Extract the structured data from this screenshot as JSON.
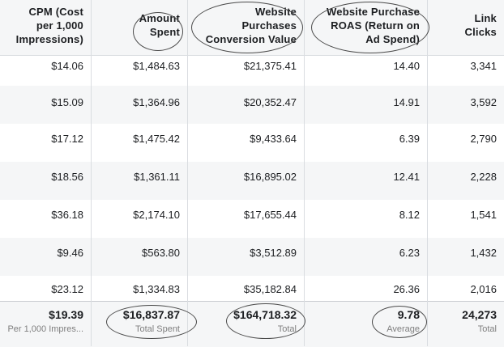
{
  "headers": [
    "CPM (Cost\nper 1,000\nImpressions)",
    "Amount\nSpent",
    "Website\nPurchases\nConversion Value",
    "Website Purchase\nROAS (Return on\nAd Spend)",
    "Link\nClicks"
  ],
  "rows": [
    [
      "$14.06",
      "$1,484.63",
      "$21,375.41",
      "14.40",
      "3,341"
    ],
    [
      "$15.09",
      "$1,364.96",
      "$20,352.47",
      "14.91",
      "3,592"
    ],
    [
      "$17.12",
      "$1,475.42",
      "$9,433.64",
      "6.39",
      "2,790"
    ],
    [
      "$18.56",
      "$1,361.11",
      "$16,895.02",
      "12.41",
      "2,228"
    ],
    [
      "$36.18",
      "$2,174.10",
      "$17,655.44",
      "8.12",
      "1,541"
    ],
    [
      "$9.46",
      "$563.80",
      "$3,512.89",
      "6.23",
      "1,432"
    ],
    [
      "$23.12",
      "$1,334.83",
      "$35,182.84",
      "26.36",
      "2,016"
    ]
  ],
  "totals": [
    {
      "value": "$19.39",
      "label": "Per 1,000 Impres..."
    },
    {
      "value": "$16,837.87",
      "label": "Total Spent"
    },
    {
      "value": "$164,718.32",
      "label": "Total"
    },
    {
      "value": "9.78",
      "label": "Average"
    },
    {
      "value": "24,273",
      "label": "Total"
    }
  ]
}
